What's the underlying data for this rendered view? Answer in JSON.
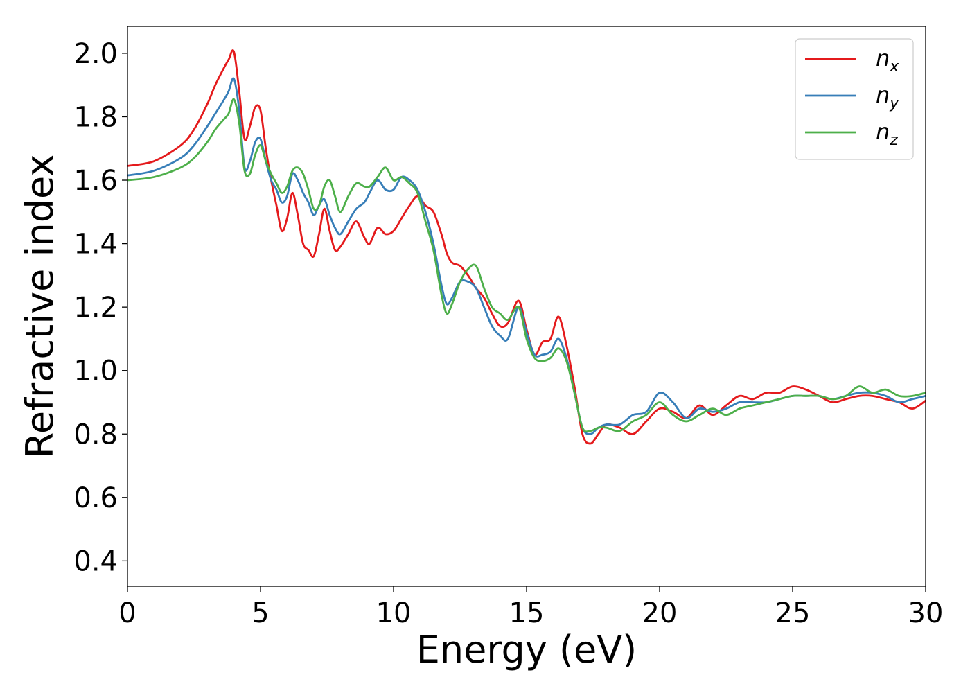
{
  "chart_data": {
    "type": "line",
    "title": "",
    "xlabel": "Energy (eV)",
    "ylabel": "Refractive index",
    "xlim": [
      0,
      30
    ],
    "ylim": [
      0.32,
      2.085
    ],
    "xticks": [
      0,
      5,
      10,
      15,
      20,
      25,
      30
    ],
    "xtick_labels": [
      "0",
      "5",
      "10",
      "15",
      "20",
      "25",
      "30"
    ],
    "yticks": [
      0.4,
      0.6,
      0.8,
      1.0,
      1.2,
      1.4,
      1.6,
      1.8,
      2.0
    ],
    "ytick_labels": [
      "0.4",
      "0.6",
      "0.8",
      "1.0",
      "1.2",
      "1.4",
      "1.6",
      "1.8",
      "2.0"
    ],
    "grid": false,
    "legend_position": "top-right",
    "series": [
      {
        "name": "nx",
        "name_base": "n",
        "name_sub": "x",
        "color": "#e41a1c",
        "x": [
          0,
          1,
          2,
          2.5,
          3,
          3.3,
          3.6,
          3.8,
          4.0,
          4.2,
          4.4,
          4.6,
          4.8,
          5.0,
          5.2,
          5.4,
          5.6,
          5.8,
          6.0,
          6.2,
          6.4,
          6.6,
          6.8,
          7.0,
          7.2,
          7.4,
          7.6,
          7.8,
          8.0,
          8.3,
          8.6,
          8.9,
          9.1,
          9.4,
          9.7,
          10.0,
          10.3,
          10.6,
          10.9,
          11.2,
          11.5,
          11.8,
          12.0,
          12.2,
          12.5,
          12.8,
          13.1,
          13.4,
          13.7,
          14.0,
          14.3,
          14.7,
          15.0,
          15.3,
          15.6,
          15.9,
          16.2,
          16.5,
          16.8,
          17.1,
          17.4,
          17.7,
          18.0,
          18.5,
          19.0,
          19.5,
          20.0,
          20.5,
          21.0,
          21.5,
          22.0,
          22.5,
          23.0,
          23.5,
          24.0,
          24.5,
          25.0,
          25.5,
          26.0,
          26.5,
          27.0,
          27.5,
          28.0,
          28.5,
          29.0,
          29.5,
          30.0
        ],
        "y": [
          1.645,
          1.66,
          1.71,
          1.76,
          1.84,
          1.9,
          1.95,
          1.98,
          2.005,
          1.88,
          1.73,
          1.77,
          1.83,
          1.82,
          1.7,
          1.6,
          1.52,
          1.44,
          1.48,
          1.56,
          1.49,
          1.4,
          1.38,
          1.36,
          1.43,
          1.51,
          1.44,
          1.38,
          1.39,
          1.43,
          1.47,
          1.42,
          1.4,
          1.45,
          1.43,
          1.44,
          1.48,
          1.52,
          1.55,
          1.52,
          1.5,
          1.43,
          1.37,
          1.34,
          1.33,
          1.3,
          1.26,
          1.23,
          1.18,
          1.14,
          1.15,
          1.22,
          1.13,
          1.05,
          1.09,
          1.1,
          1.17,
          1.08,
          0.95,
          0.8,
          0.77,
          0.8,
          0.83,
          0.82,
          0.8,
          0.84,
          0.88,
          0.87,
          0.85,
          0.89,
          0.86,
          0.89,
          0.92,
          0.91,
          0.93,
          0.93,
          0.95,
          0.94,
          0.92,
          0.9,
          0.91,
          0.92,
          0.92,
          0.91,
          0.9,
          0.88,
          0.905
        ]
      },
      {
        "name": "ny",
        "name_base": "n",
        "name_sub": "y",
        "color": "#377eb8",
        "x": [
          0,
          1,
          2,
          2.5,
          3,
          3.3,
          3.6,
          3.8,
          4.0,
          4.2,
          4.4,
          4.6,
          4.8,
          5.0,
          5.2,
          5.4,
          5.6,
          5.8,
          6.0,
          6.2,
          6.4,
          6.6,
          6.8,
          7.0,
          7.2,
          7.4,
          7.6,
          7.8,
          8.0,
          8.3,
          8.6,
          8.9,
          9.1,
          9.4,
          9.7,
          10.0,
          10.3,
          10.6,
          10.9,
          11.2,
          11.5,
          11.8,
          12.0,
          12.2,
          12.5,
          12.8,
          13.1,
          13.4,
          13.7,
          14.0,
          14.3,
          14.7,
          15.0,
          15.3,
          15.6,
          15.9,
          16.2,
          16.5,
          16.8,
          17.1,
          17.4,
          17.7,
          18.0,
          18.5,
          19.0,
          19.5,
          20.0,
          20.5,
          21.0,
          21.5,
          22.0,
          22.5,
          23.0,
          23.5,
          24.0,
          24.5,
          25.0,
          25.5,
          26.0,
          26.5,
          27.0,
          27.5,
          28.0,
          28.5,
          29.0,
          29.5,
          30.0
        ],
        "y": [
          1.615,
          1.63,
          1.67,
          1.71,
          1.77,
          1.81,
          1.85,
          1.88,
          1.92,
          1.82,
          1.64,
          1.66,
          1.72,
          1.73,
          1.66,
          1.6,
          1.57,
          1.53,
          1.55,
          1.62,
          1.6,
          1.56,
          1.53,
          1.49,
          1.52,
          1.54,
          1.49,
          1.45,
          1.43,
          1.47,
          1.51,
          1.53,
          1.56,
          1.6,
          1.57,
          1.57,
          1.61,
          1.6,
          1.57,
          1.5,
          1.4,
          1.27,
          1.21,
          1.23,
          1.28,
          1.28,
          1.26,
          1.2,
          1.14,
          1.11,
          1.1,
          1.2,
          1.12,
          1.05,
          1.05,
          1.06,
          1.1,
          1.04,
          0.93,
          0.82,
          0.8,
          0.82,
          0.83,
          0.83,
          0.86,
          0.87,
          0.93,
          0.9,
          0.85,
          0.88,
          0.87,
          0.88,
          0.9,
          0.9,
          0.9,
          0.91,
          0.92,
          0.92,
          0.92,
          0.91,
          0.92,
          0.93,
          0.93,
          0.92,
          0.9,
          0.91,
          0.92
        ]
      },
      {
        "name": "nz",
        "name_base": "n",
        "name_sub": "z",
        "color": "#4daf4a",
        "x": [
          0,
          1,
          2,
          2.5,
          3,
          3.3,
          3.6,
          3.8,
          4.0,
          4.2,
          4.4,
          4.6,
          4.8,
          5.0,
          5.2,
          5.4,
          5.6,
          5.8,
          6.0,
          6.2,
          6.4,
          6.6,
          6.8,
          7.0,
          7.2,
          7.4,
          7.6,
          7.8,
          8.0,
          8.3,
          8.6,
          8.9,
          9.1,
          9.4,
          9.7,
          10.0,
          10.3,
          10.6,
          10.9,
          11.2,
          11.5,
          11.8,
          12.0,
          12.2,
          12.5,
          12.8,
          13.1,
          13.4,
          13.7,
          14.0,
          14.3,
          14.7,
          15.0,
          15.3,
          15.6,
          15.9,
          16.2,
          16.5,
          16.8,
          17.1,
          17.4,
          17.7,
          18.0,
          18.5,
          19.0,
          19.5,
          20.0,
          20.5,
          21.0,
          21.5,
          22.0,
          22.5,
          23.0,
          23.5,
          24.0,
          24.5,
          25.0,
          25.5,
          26.0,
          26.5,
          27.0,
          27.5,
          28.0,
          28.5,
          29.0,
          29.5,
          30.0
        ],
        "y": [
          1.6,
          1.61,
          1.64,
          1.67,
          1.72,
          1.76,
          1.79,
          1.81,
          1.855,
          1.78,
          1.63,
          1.62,
          1.68,
          1.71,
          1.66,
          1.62,
          1.59,
          1.56,
          1.58,
          1.63,
          1.64,
          1.62,
          1.57,
          1.51,
          1.52,
          1.58,
          1.6,
          1.55,
          1.5,
          1.55,
          1.59,
          1.58,
          1.58,
          1.61,
          1.64,
          1.6,
          1.61,
          1.59,
          1.56,
          1.47,
          1.38,
          1.24,
          1.18,
          1.21,
          1.28,
          1.32,
          1.33,
          1.26,
          1.2,
          1.18,
          1.16,
          1.2,
          1.1,
          1.04,
          1.03,
          1.04,
          1.07,
          1.03,
          0.93,
          0.82,
          0.81,
          0.82,
          0.82,
          0.81,
          0.84,
          0.86,
          0.9,
          0.86,
          0.84,
          0.86,
          0.88,
          0.86,
          0.88,
          0.89,
          0.9,
          0.91,
          0.92,
          0.92,
          0.92,
          0.91,
          0.92,
          0.95,
          0.93,
          0.94,
          0.92,
          0.92,
          0.93
        ]
      }
    ]
  }
}
